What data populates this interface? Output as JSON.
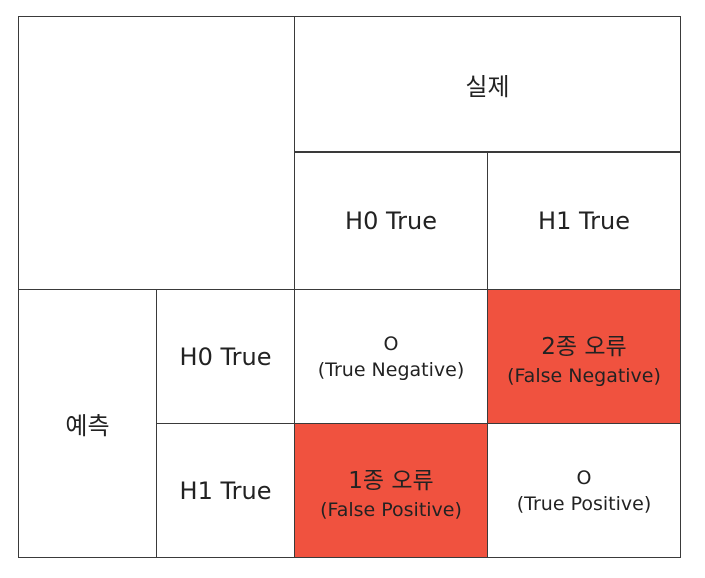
{
  "header": {
    "actual": "실제",
    "col_h0": "H0 True",
    "col_h1": "H1 True"
  },
  "rows": {
    "predicted": "예측",
    "row_h0": "H0 True",
    "row_h1": "H1 True"
  },
  "cells": {
    "tn": {
      "value": "O",
      "label": "(True Negative)"
    },
    "fn": {
      "value": "2종 오류",
      "label": "(False Negative)"
    },
    "fp": {
      "value": "1종 오류",
      "label": "(False Positive)"
    },
    "tp": {
      "value": "O",
      "label": "(True Positive)"
    }
  },
  "colors": {
    "error_fill": "#f0523f"
  }
}
